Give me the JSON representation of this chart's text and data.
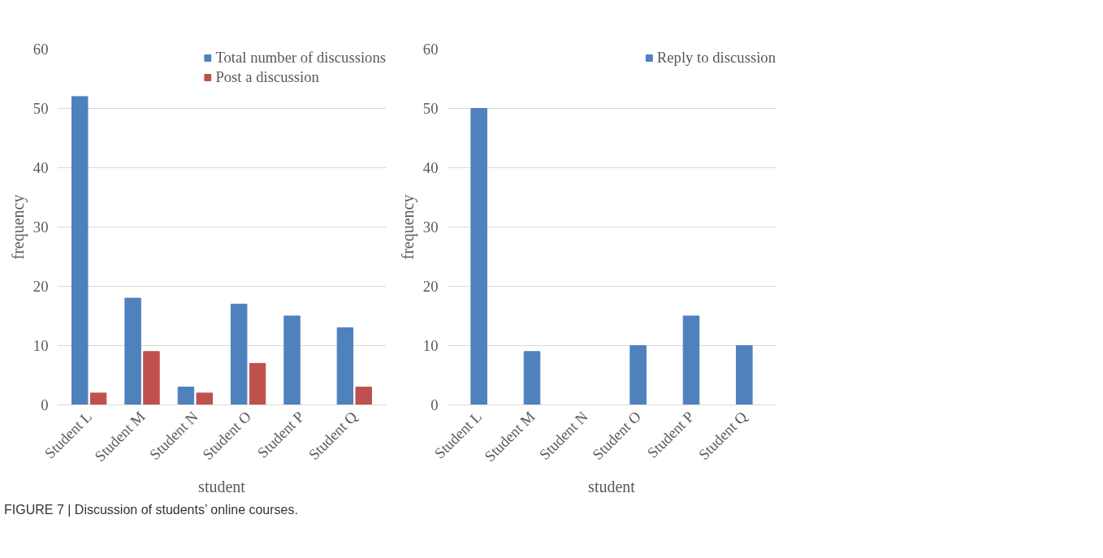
{
  "chart_data": [
    {
      "type": "bar",
      "xlabel": "student",
      "ylabel": "frequency",
      "categories": [
        "Student L",
        "Student M",
        "Student N",
        "Student O",
        "Student P",
        "Student Q"
      ],
      "series": [
        {
          "name": "Total number of discussions",
          "color": "#4f81bd",
          "values": [
            52,
            18,
            3,
            17,
            15,
            13
          ]
        },
        {
          "name": "Post a discussion",
          "color": "#c0504d",
          "values": [
            2,
            9,
            2,
            7,
            0,
            3
          ]
        }
      ],
      "ylim": [
        0,
        60
      ],
      "yticks": [
        0,
        10,
        20,
        30,
        40,
        50,
        60
      ],
      "grid": "y",
      "legend": "top right",
      "annotations": [
        "FIGURE 7 | Discussion of students’ online courses."
      ]
    },
    {
      "type": "bar",
      "xlabel": "student",
      "ylabel": "frequency",
      "categories": [
        "Student L",
        "Student M",
        "Student N",
        "Student O",
        "Student P",
        "Student Q"
      ],
      "series": [
        {
          "name": "Reply to discussion",
          "color": "#4f81bd",
          "values": [
            50,
            9,
            0,
            10,
            15,
            10
          ]
        }
      ],
      "ylim": [
        0,
        60
      ],
      "yticks": [
        0,
        10,
        20,
        30,
        40,
        50,
        60
      ],
      "grid": "y",
      "legend": "top right"
    }
  ]
}
